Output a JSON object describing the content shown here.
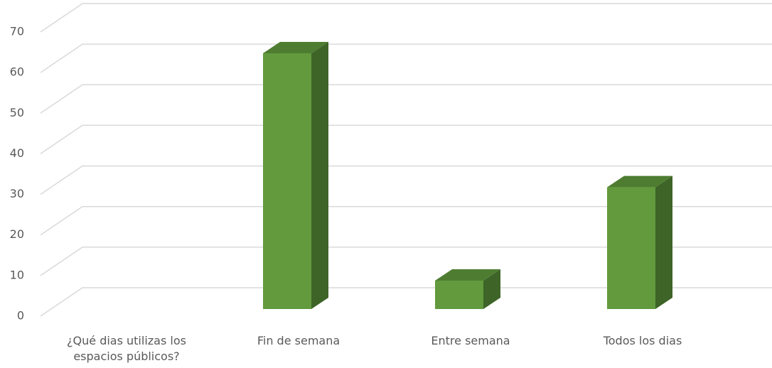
{
  "chart_data": {
    "type": "bar3d",
    "categories": [
      "¿Qué dias utilizas los espacios públicos?",
      "Fin de semana",
      "Entre semana",
      "Todos los dias"
    ],
    "values": [
      null,
      63,
      7,
      30
    ],
    "color": "#629a3d",
    "ylim": [
      0,
      70
    ],
    "yticks": [
      0,
      10,
      20,
      30,
      40,
      50,
      60,
      70
    ],
    "grid": true
  }
}
